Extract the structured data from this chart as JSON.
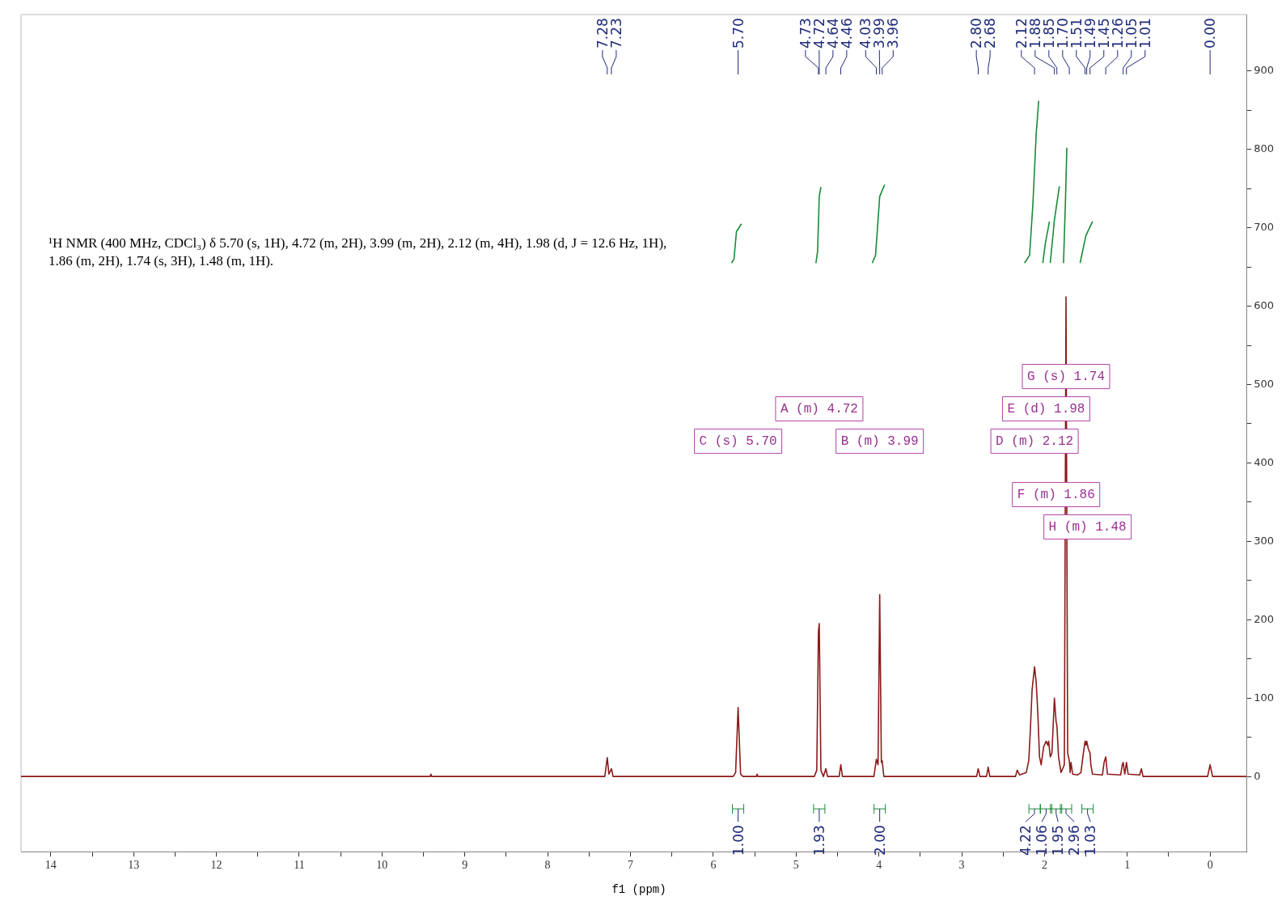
{
  "chart_data": {
    "type": "line",
    "xlabel": "f1 (ppm)",
    "xlim": [
      14.36,
      -0.44
    ],
    "ylim": [
      -96,
      972
    ],
    "xticks": [
      0,
      {
        "value": 0.5,
        "label": null
      },
      1,
      {
        "value": 1.5,
        "label": null
      },
      2,
      {
        "value": 2.5,
        "label": null
      },
      3,
      {
        "value": 3.5,
        "label": null
      },
      4,
      {
        "value": 4.5,
        "label": null
      },
      5,
      {
        "value": 5.5,
        "label": null
      },
      6,
      {
        "value": 6.5,
        "label": null
      },
      7,
      {
        "value": 7.5,
        "label": null
      },
      8,
      {
        "value": 8.5,
        "label": null
      },
      9,
      {
        "value": 9.5,
        "label": null
      },
      10,
      {
        "value": 10.5,
        "label": null
      },
      11,
      {
        "value": 11.5,
        "label": null
      },
      12,
      {
        "value": 12.5,
        "label": null
      },
      13,
      {
        "value": 13.5,
        "label": null
      },
      14
    ],
    "yticks": [
      0,
      {
        "value": 50,
        "label": null
      },
      100,
      {
        "value": 150,
        "label": null
      },
      200,
      {
        "value": 250,
        "label": null
      },
      300,
      {
        "value": 350,
        "label": null
      },
      400,
      {
        "value": 450,
        "label": null
      },
      500,
      {
        "value": 550,
        "label": null
      },
      600,
      {
        "value": 650,
        "label": null
      },
      700,
      {
        "value": 750,
        "label": null
      },
      800,
      {
        "value": 850,
        "label": null
      },
      900
    ],
    "grid": false,
    "legend": false,
    "marker": "none",
    "series": [
      {
        "color": "#8b1a1a",
        "x": [
          14.36,
          9.42,
          9.41,
          9.4,
          7.31,
          7.28,
          7.26,
          7.23,
          7.21,
          5.76,
          5.73,
          5.7,
          5.67,
          5.64,
          5.48,
          5.47,
          5.46,
          4.78,
          4.75,
          4.73,
          4.72,
          4.7,
          4.67,
          4.64,
          4.62,
          4.48,
          4.46,
          4.44,
          4.06,
          4.03,
          4.01,
          3.99,
          3.97,
          3.96,
          3.94,
          2.82,
          2.8,
          2.78,
          2.7,
          2.68,
          2.66,
          2.35,
          2.33,
          2.3,
          2.22,
          2.19,
          2.17,
          2.15,
          2.12,
          2.1,
          2.08,
          2.06,
          2.04,
          2.01,
          1.98,
          1.96,
          1.95,
          1.93,
          1.91,
          1.88,
          1.86,
          1.85,
          1.83,
          1.8,
          1.76,
          1.74,
          1.72,
          1.7,
          1.69,
          1.68,
          1.66,
          1.6,
          1.56,
          1.53,
          1.51,
          1.5,
          1.49,
          1.47,
          1.45,
          1.44,
          1.42,
          1.3,
          1.28,
          1.26,
          1.24,
          1.08,
          1.06,
          1.05,
          1.03,
          1.01,
          0.99,
          0.85,
          0.83,
          0.81,
          0.03,
          0,
          -0.03,
          -0.44
        ],
        "values": [
          0,
          0,
          3,
          0,
          0,
          24,
          3,
          10,
          0,
          0,
          5,
          88,
          3,
          0,
          0,
          3,
          0,
          0,
          8,
          185,
          195,
          8,
          0,
          10,
          0,
          0,
          15,
          0,
          0,
          22,
          15,
          232,
          18,
          20,
          0,
          0,
          10,
          0,
          0,
          12,
          0,
          0,
          8,
          2,
          5,
          20,
          60,
          110,
          140,
          120,
          80,
          25,
          15,
          38,
          45,
          40,
          45,
          25,
          30,
          100,
          70,
          65,
          25,
          5,
          15,
          612,
          30,
          20,
          5,
          18,
          3,
          2,
          5,
          30,
          45,
          40,
          45,
          35,
          30,
          15,
          3,
          2,
          18,
          25,
          3,
          2,
          15,
          18,
          3,
          18,
          3,
          2,
          10,
          0,
          0,
          15,
          0,
          0
        ]
      },
      {
        "color": "#1a8a3a",
        "x": [
          5.78,
          5.75,
          5.72,
          5.66,
          5.6,
          4.76,
          4.74,
          4.72,
          4.7,
          4.6,
          4.08,
          4.04,
          3.99,
          3.93,
          2.5,
          2.24,
          2.18,
          2.14,
          2.1,
          2.07,
          2.05,
          2.02,
          1.99,
          1.94,
          1.935,
          1.93,
          1.88,
          1.82,
          1.8,
          1.77,
          1.745,
          1.73,
          1.6,
          1.57,
          1.5,
          1.42
        ],
        "values": [
          655,
          660,
          695,
          705,
          null,
          655,
          670,
          740,
          752,
          null,
          655,
          665,
          740,
          755,
          null,
          655,
          665,
          730,
          820,
          862,
          null,
          655,
          680,
          708,
          null,
          655,
          710,
          753,
          null,
          655,
          740,
          802,
          null,
          655,
          690,
          708
        ]
      }
    ],
    "annotations": [
      "¹H NMR (400 MHz, CDCl₃) δ 5.70 (s, 1H), 4.72 (m, 2H), 3.99 (m, 2H), 2.12 (m, 4H), 1.98 (d, J = 12.6 Hz, 1H), 1.86 (m, 2H), 1.74 (s, 3H), 1.48 (m, 1H).",
      {
        "text": "7.28",
        "x": 7.28
      },
      {
        "text": "7.23",
        "x": 7.23
      },
      {
        "text": "5.70",
        "x": 5.7
      },
      {
        "text": "4.73",
        "x": 4.73
      },
      {
        "text": "4.72",
        "x": 4.72
      },
      {
        "text": "4.64",
        "x": 4.64
      },
      {
        "text": "4.46",
        "x": 4.46
      },
      {
        "text": "4.03",
        "x": 4.03
      },
      {
        "text": "3.99",
        "x": 3.99
      },
      {
        "text": "3.96",
        "x": 3.96
      },
      {
        "text": "2.80",
        "x": 2.8
      },
      {
        "text": "2.68",
        "x": 2.68
      },
      {
        "text": "2.12",
        "x": 2.12
      },
      {
        "text": "1.88",
        "x": 1.88
      },
      {
        "text": "1.85",
        "x": 1.85
      },
      {
        "text": "1.70",
        "x": 1.7
      },
      {
        "text": "1.51",
        "x": 1.51
      },
      {
        "text": "1.49",
        "x": 1.49
      },
      {
        "text": "1.45",
        "x": 1.45
      },
      {
        "text": "1.26",
        "x": 1.26
      },
      {
        "text": "1.05",
        "x": 1.05
      },
      {
        "text": "1.01",
        "x": 1.01
      },
      {
        "text": "0.00",
        "x": 0
      },
      "C (s) 5.70",
      "A (m) 4.72",
      "B (m) 3.99",
      "D (m) 2.12",
      "E (d) 1.98",
      "F (m) 1.86",
      "G (s) 1.74",
      "H (m) 1.48",
      {
        "text": "1.00",
        "x": 5.7
      },
      {
        "text": "1.93",
        "x": 4.72
      },
      {
        "text": "2.00",
        "x": 3.99
      },
      {
        "text": "4.22",
        "x": 2.12
      },
      {
        "text": "1.06",
        "x": 1.98
      },
      {
        "text": "1.95",
        "x": 1.86
      },
      {
        "text": "2.96",
        "x": 1.74
      },
      {
        "text": "1.03",
        "x": 1.48
      }
    ]
  }
}
